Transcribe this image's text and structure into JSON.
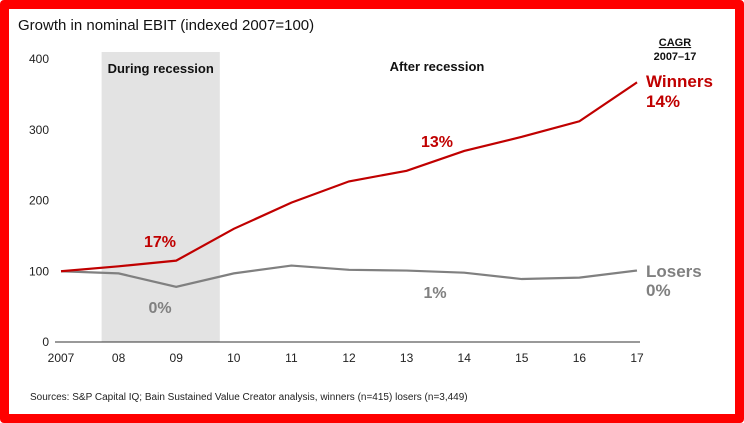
{
  "chart_data": {
    "type": "line",
    "title": "Growth in nominal EBIT (indexed 2007=100)",
    "xlabel": "",
    "ylabel": "",
    "x_categories": [
      "2007",
      "08",
      "09",
      "10",
      "11",
      "12",
      "13",
      "14",
      "15",
      "16",
      "17"
    ],
    "ylim": [
      0,
      400
    ],
    "yticks": [
      0,
      100,
      200,
      300,
      400
    ],
    "grid": false,
    "shaded_period": {
      "label": "During recession",
      "from": "08",
      "to": "10"
    },
    "period_labels": [
      "During recession",
      "After recession"
    ],
    "cagr_header": {
      "title": "CAGR",
      "subtitle": "2007–17"
    },
    "series": [
      {
        "name": "Winners",
        "cagr": "14%",
        "color": "#c00000",
        "values": [
          100,
          107,
          115,
          160,
          197,
          227,
          242,
          270,
          290,
          312,
          367
        ],
        "annotations": [
          {
            "text": "17%",
            "period": "During recession"
          },
          {
            "text": "13%",
            "period": "After recession"
          }
        ]
      },
      {
        "name": "Losers",
        "cagr": "0%",
        "color": "#808080",
        "values": [
          100,
          97,
          78,
          97,
          108,
          102,
          101,
          98,
          89,
          91,
          101
        ],
        "annotations": [
          {
            "text": "0%",
            "period": "During recession"
          },
          {
            "text": "1%",
            "period": "After recession"
          }
        ]
      }
    ],
    "source": "Sources: S&P Capital IQ; Bain Sustained Value Creator analysis, winners (n=415) losers (n=3,449)"
  }
}
